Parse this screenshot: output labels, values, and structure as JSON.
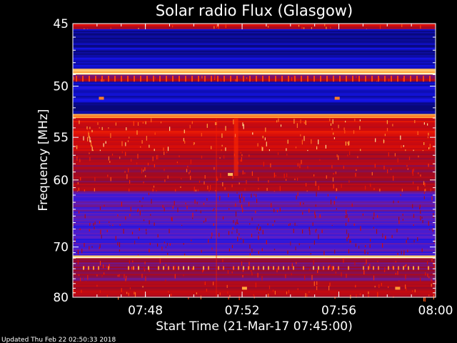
{
  "chart_data": {
    "type": "heatmap",
    "title": "Solar radio Flux (Glasgow)",
    "xlabel": "Start Time (21-Mar-17 07:45:00)",
    "ylabel": "Frequency [MHz]",
    "xlim": [
      "07:45",
      "08:00"
    ],
    "ylim": [
      45,
      80
    ],
    "y_inverted": true,
    "x_ticks": [
      "07:48",
      "07:52",
      "07:56",
      "08:00"
    ],
    "y_ticks": [
      45,
      50,
      55,
      60,
      70,
      80
    ],
    "grid": false,
    "colormap": "blue-red-yellow",
    "bands": [
      {
        "f0": 45.0,
        "f1": 45.4,
        "level": 0.55
      },
      {
        "f0": 45.4,
        "f1": 48.5,
        "level": 0.08
      },
      {
        "f0": 48.5,
        "f1": 49.0,
        "level": 0.97
      },
      {
        "f0": 49.0,
        "f1": 49.6,
        "level": 0.45
      },
      {
        "f0": 49.6,
        "f1": 51.5,
        "level": 0.12
      },
      {
        "f0": 51.5,
        "f1": 52.6,
        "level": 0.02
      },
      {
        "f0": 52.6,
        "f1": 53.0,
        "level": 0.85
      },
      {
        "f0": 53.0,
        "f1": 56.5,
        "level": 0.62
      },
      {
        "f0": 56.5,
        "f1": 61.5,
        "level": 0.48
      },
      {
        "f0": 61.5,
        "f1": 66.5,
        "level": 0.3
      },
      {
        "f0": 66.5,
        "f1": 71.5,
        "level": 0.26
      },
      {
        "f0": 71.5,
        "f1": 72.0,
        "level": 0.97
      },
      {
        "f0": 72.0,
        "f1": 76.5,
        "level": 0.42
      },
      {
        "f0": 76.5,
        "f1": 80.0,
        "level": 0.5
      }
    ],
    "features": [
      {
        "kind": "burst",
        "time": "07:51:45",
        "f0": 53.0,
        "f1": 59.5,
        "level": 0.75
      },
      {
        "kind": "spot",
        "time": "07:46:10",
        "f": 51.1,
        "level": 0.85
      },
      {
        "kind": "spot",
        "time": "07:55:55",
        "f": 51.1,
        "level": 0.85
      },
      {
        "kind": "spot",
        "time": "07:51:30",
        "f": 59.3,
        "level": 0.92
      },
      {
        "kind": "spot",
        "time": "07:52:05",
        "f": 78.0,
        "level": 0.9
      },
      {
        "kind": "spot",
        "time": "07:58:25",
        "f": 78.0,
        "level": 0.88
      },
      {
        "kind": "line",
        "time": "07:50:55",
        "f0": 53.0,
        "f1": 80.0,
        "level": 0.7
      }
    ]
  },
  "footer": {
    "updated": "Updated Thu Feb 22 02:50:33 2018"
  }
}
